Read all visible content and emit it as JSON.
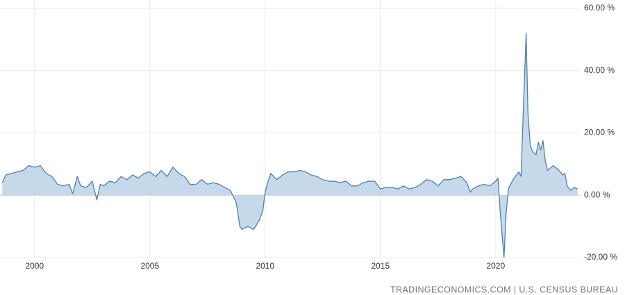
{
  "chart_data": {
    "type": "area",
    "source": "TRADINGECONOMICS.COM | U.S. CENSUS BUREAU",
    "color": "#4f7fab",
    "fill_color": "#bcd2e8",
    "grid": true,
    "xlim": [
      1998.5,
      2023.65
    ],
    "xticks": [
      2000,
      2005,
      2010,
      2015,
      2020
    ],
    "ylim": [
      -20,
      60
    ],
    "yticks": [
      {
        "value": 60,
        "label": "60.00 %"
      },
      {
        "value": 40,
        "label": "40.00 %"
      },
      {
        "value": 20,
        "label": "20.00 %"
      },
      {
        "value": 0,
        "label": "0.00 %"
      },
      {
        "value": -20,
        "label": "-20.00 %"
      }
    ],
    "x": [
      1998.6,
      1998.75,
      1999,
      1999.25,
      1999.5,
      1999.75,
      2000,
      2000.25,
      2000.5,
      2000.75,
      2001,
      2001.25,
      2001.5,
      2001.65,
      2001.85,
      2002,
      2002.25,
      2002.5,
      2002.7,
      2002.85,
      2003,
      2003.25,
      2003.5,
      2003.75,
      2004,
      2004.25,
      2004.5,
      2004.75,
      2005,
      2005.25,
      2005.5,
      2005.75,
      2006,
      2006.25,
      2006.5,
      2006.75,
      2007,
      2007.25,
      2007.5,
      2007.75,
      2008,
      2008.25,
      2008.5,
      2008.75,
      2008.9,
      2009,
      2009.25,
      2009.5,
      2009.75,
      2009.9,
      2010,
      2010.1,
      2010.25,
      2010.5,
      2010.75,
      2011,
      2011.25,
      2011.5,
      2011.75,
      2012,
      2012.25,
      2012.5,
      2012.75,
      2013,
      2013.25,
      2013.5,
      2013.75,
      2014,
      2014.25,
      2014.5,
      2014.75,
      2015,
      2015.25,
      2015.5,
      2015.75,
      2016,
      2016.25,
      2016.5,
      2016.75,
      2017,
      2017.25,
      2017.5,
      2017.75,
      2018,
      2018.25,
      2018.5,
      2018.75,
      2018.9,
      2019,
      2019.25,
      2019.5,
      2019.75,
      2020,
      2020.1,
      2020.2,
      2020.36,
      2020.45,
      2020.55,
      2020.75,
      2021,
      2021.1,
      2021.2,
      2021.32,
      2021.4,
      2021.5,
      2021.6,
      2021.75,
      2021.85,
      2021.95,
      2022.05,
      2022.15,
      2022.25,
      2022.5,
      2022.75,
      2022.9,
      2023,
      2023.1,
      2023.25,
      2023.4,
      2023.55
    ],
    "values": [
      4,
      6.5,
      7,
      7.5,
      8,
      9.5,
      9,
      9.5,
      7,
      6,
      3.5,
      3,
      3.5,
      0.5,
      6,
      3,
      2.5,
      4.5,
      -1.5,
      3.5,
      3,
      4.5,
      4,
      6,
      5,
      6.5,
      5.5,
      7,
      7.5,
      6,
      8,
      6,
      9,
      7,
      6,
      3.5,
      3.5,
      5,
      3.5,
      4,
      3.5,
      2.5,
      1.5,
      -2.5,
      -10,
      -11,
      -10,
      -11,
      -8,
      -5,
      1,
      4,
      7,
      5,
      6.5,
      7.5,
      7.5,
      8,
      7.5,
      6.5,
      6,
      5,
      4.5,
      4.5,
      4,
      4.5,
      3,
      3,
      4,
      4.5,
      4.5,
      2,
      2.5,
      2.5,
      2,
      3,
      2,
      2.5,
      3.5,
      5,
      4.5,
      3,
      5,
      5,
      5.5,
      6,
      4,
      1,
      2,
      3,
      3.5,
      3,
      4.5,
      5.5,
      -6,
      -20,
      -6,
      2,
      5,
      7.5,
      6,
      28,
      52,
      26,
      16,
      14,
      13,
      17,
      14.5,
      17.5,
      11,
      8,
      9.5,
      8,
      6.5,
      7,
      3,
      1.5,
      2.5,
      2
    ]
  }
}
